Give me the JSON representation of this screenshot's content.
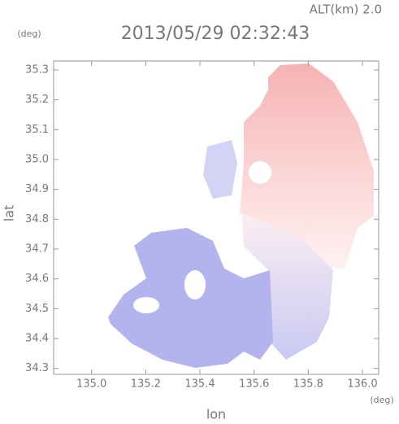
{
  "chart_data": {
    "type": "map",
    "title": "2013/05/29 02:32:43",
    "annotation": "ALT(km) 2.0",
    "x_label": "lon",
    "y_label": "lat",
    "x_unit": "(deg)",
    "y_unit": "(deg)",
    "xlim": [
      134.86,
      136.06
    ],
    "ylim": [
      34.28,
      35.33
    ],
    "xticks": [
      {
        "value": 135,
        "label": "135.0"
      },
      135.2,
      135.4,
      135.6,
      135.8,
      {
        "value": 136,
        "label": "136.0"
      }
    ],
    "yticks": [
      34.3,
      34.4,
      34.5,
      34.6,
      34.7,
      34.8,
      34.9,
      {
        "value": 35,
        "label": "35.0"
      },
      35.1,
      35.2,
      35.3
    ]
  }
}
